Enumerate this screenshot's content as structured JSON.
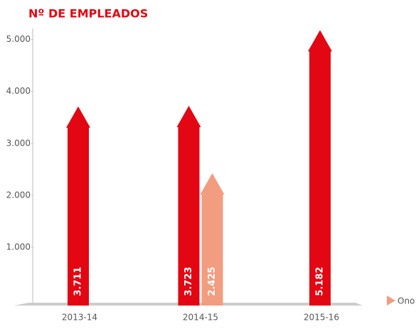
{
  "chart_data": {
    "type": "arrow-bar",
    "title": "Nº DE EMPLEADOS",
    "categories": [
      "2013-14",
      "2014-15",
      "2015-16"
    ],
    "series": [
      {
        "color": "#e30613",
        "values": [
          3711,
          3723,
          5182
        ],
        "value_labels": [
          "3.711",
          "3.723",
          "5.182"
        ]
      },
      {
        "name": "Ono",
        "color": "#f29c80",
        "values": [
          null,
          2425,
          null
        ],
        "value_labels": [
          null,
          "2.425",
          null
        ]
      }
    ],
    "ylim": [
      0,
      5200
    ],
    "yticks": [
      {
        "value": 1000,
        "label": "1.000"
      },
      {
        "value": 2000,
        "label": "2.000"
      },
      {
        "value": 3000,
        "label": "3.000"
      },
      {
        "value": 4000,
        "label": "4.000"
      },
      {
        "value": 5000,
        "label": "5.000"
      }
    ]
  }
}
